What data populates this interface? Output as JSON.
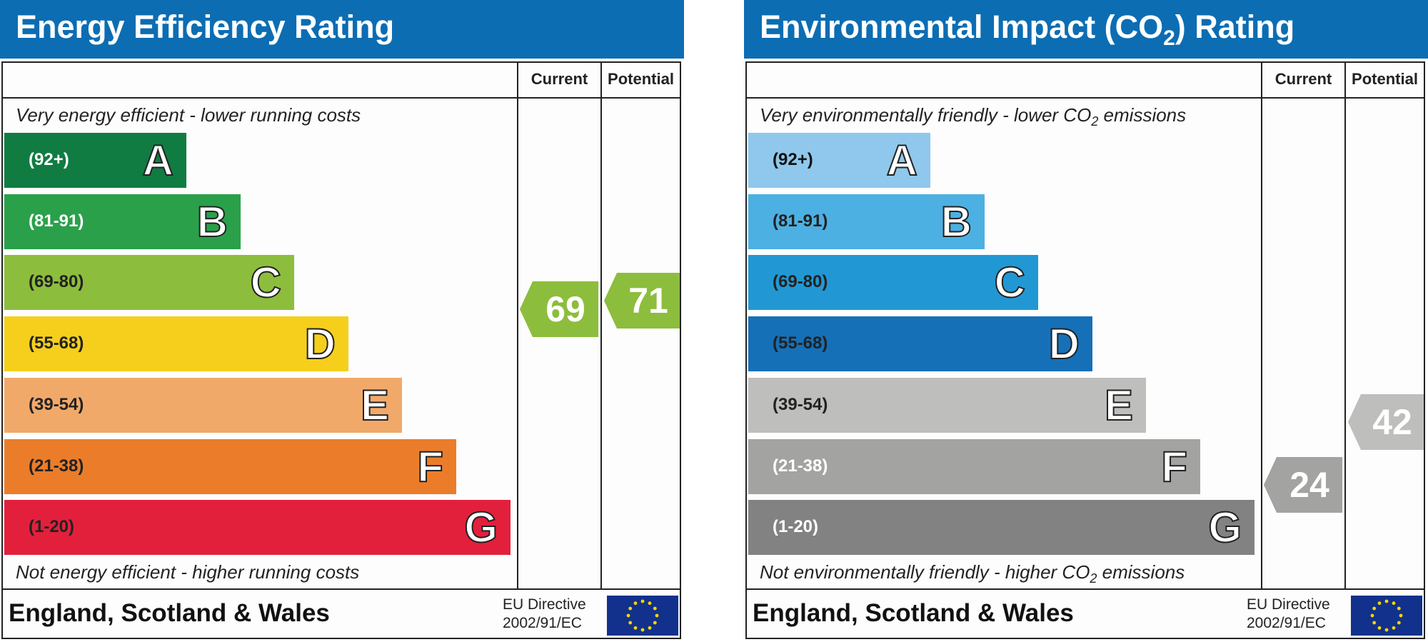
{
  "chart_data": [
    {
      "type": "bar",
      "title": "Energy Efficiency Rating",
      "columns": [
        "Current",
        "Potential"
      ],
      "top_note": "Very energy efficient - lower running costs",
      "bottom_note": "Not energy efficient - higher running costs",
      "bands": [
        {
          "letter": "A",
          "range": "(92+)",
          "color": "#107c41",
          "text_color": "#ffffff"
        },
        {
          "letter": "B",
          "range": "(81-91)",
          "color": "#2aa04a",
          "text_color": "#ffffff"
        },
        {
          "letter": "C",
          "range": "(69-80)",
          "color": "#8dbd3d",
          "text_color": "#222222"
        },
        {
          "letter": "D",
          "range": "(55-68)",
          "color": "#f5cf1c",
          "text_color": "#222222"
        },
        {
          "letter": "E",
          "range": "(39-54)",
          "color": "#f1a96a",
          "text_color": "#222222"
        },
        {
          "letter": "F",
          "range": "(21-38)",
          "color": "#eb7d2a",
          "text_color": "#222222"
        },
        {
          "letter": "G",
          "range": "(1-20)",
          "color": "#e3203c",
          "text_color": "#222222"
        }
      ],
      "current": 69,
      "potential": 71,
      "current_color": "#8dbd3d",
      "potential_color": "#8dbd3d",
      "footer": "England, Scotland & Wales",
      "eu_line1": "EU Directive",
      "eu_line2": "2002/91/EC"
    },
    {
      "type": "bar",
      "title": "Environmental Impact (CO2) Rating",
      "columns": [
        "Current",
        "Potential"
      ],
      "top_note": "Very environmentally friendly - lower CO2 emissions",
      "bottom_note": "Not environmentally friendly - higher CO2 emissions",
      "bands": [
        {
          "letter": "A",
          "range": "(92+)",
          "color": "#8fc8ec",
          "text_color": "#111111"
        },
        {
          "letter": "B",
          "range": "(81-91)",
          "color": "#4db0e2",
          "text_color": "#222222"
        },
        {
          "letter": "C",
          "range": "(69-80)",
          "color": "#2198d4",
          "text_color": "#222222"
        },
        {
          "letter": "D",
          "range": "(55-68)",
          "color": "#1670b8",
          "text_color": "#222222"
        },
        {
          "letter": "E",
          "range": "(39-54)",
          "color": "#bebebc",
          "text_color": "#222222"
        },
        {
          "letter": "F",
          "range": "(21-38)",
          "color": "#a3a3a1",
          "text_color": "#ffffff"
        },
        {
          "letter": "G",
          "range": "(1-20)",
          "color": "#828282",
          "text_color": "#ffffff"
        }
      ],
      "current": 24,
      "potential": 42,
      "current_color": "#a3a3a1",
      "potential_color": "#bebebc",
      "footer": "England, Scotland & Wales",
      "eu_line1": "EU Directive",
      "eu_line2": "2002/91/EC"
    }
  ]
}
